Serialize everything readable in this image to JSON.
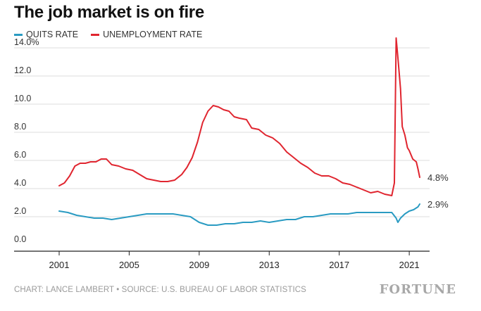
{
  "header": {
    "title": "The job market is on fire"
  },
  "footer": {
    "source": "CHART: LANCE LAMBERT • SOURCE: U.S. BUREAU OF LABOR STATISTICS",
    "brand": "FORTUNE"
  },
  "colors": {
    "quits": "#2a9bc2",
    "unemployment": "#e0252f",
    "grid": "#dedede",
    "axis": "#222222"
  },
  "chart_data": {
    "type": "line",
    "title": "The job market is on fire",
    "xlabel": "",
    "ylabel": "",
    "xlim": [
      2001.0,
      2021.8
    ],
    "ylim": [
      0,
      14
    ],
    "y_ticks": [
      "0.0",
      "2.0",
      "4.0",
      "6.0",
      "8.0",
      "10.0",
      "12.0",
      "14.0%"
    ],
    "y_tick_values": [
      0,
      2,
      4,
      6,
      8,
      10,
      12,
      14
    ],
    "x_ticks": [
      "2001",
      "2005",
      "2009",
      "2013",
      "2017",
      "2021"
    ],
    "x_tick_values": [
      2001,
      2005,
      2009,
      2013,
      2017,
      2021
    ],
    "grid": "horizontal",
    "legend_position": "top-left",
    "series": [
      {
        "name": "QUITS RATE",
        "end_label": "2.9%",
        "x": [
          2001.0,
          2001.5,
          2002.0,
          2002.5,
          2003.0,
          2003.5,
          2004.0,
          2004.5,
          2005.0,
          2005.5,
          2006.0,
          2006.5,
          2007.0,
          2007.5,
          2008.0,
          2008.5,
          2009.0,
          2009.5,
          2010.0,
          2010.5,
          2011.0,
          2011.5,
          2012.0,
          2012.5,
          2013.0,
          2013.5,
          2014.0,
          2014.5,
          2015.0,
          2015.5,
          2016.0,
          2016.5,
          2017.0,
          2017.5,
          2018.0,
          2018.5,
          2019.0,
          2019.5,
          2020.0,
          2020.25,
          2020.35,
          2020.5,
          2020.75,
          2021.0,
          2021.25,
          2021.5,
          2021.6
        ],
        "values": [
          2.4,
          2.3,
          2.1,
          2.0,
          1.9,
          1.9,
          1.8,
          1.9,
          2.0,
          2.1,
          2.2,
          2.2,
          2.2,
          2.2,
          2.1,
          2.0,
          1.6,
          1.4,
          1.4,
          1.5,
          1.5,
          1.6,
          1.6,
          1.7,
          1.6,
          1.7,
          1.8,
          1.8,
          2.0,
          2.0,
          2.1,
          2.2,
          2.2,
          2.2,
          2.3,
          2.3,
          2.3,
          2.3,
          2.3,
          1.9,
          1.6,
          1.9,
          2.2,
          2.4,
          2.5,
          2.7,
          2.9
        ]
      },
      {
        "name": "UNEMPLOYMENT RATE",
        "end_label": "4.8%",
        "x": [
          2001.0,
          2001.3,
          2001.6,
          2001.9,
          2002.2,
          2002.5,
          2002.8,
          2003.1,
          2003.4,
          2003.7,
          2004.0,
          2004.4,
          2004.8,
          2005.2,
          2005.6,
          2006.0,
          2006.4,
          2006.8,
          2007.2,
          2007.6,
          2008.0,
          2008.3,
          2008.6,
          2008.9,
          2009.2,
          2009.5,
          2009.8,
          2010.1,
          2010.4,
          2010.7,
          2011.0,
          2011.3,
          2011.7,
          2012.0,
          2012.4,
          2012.8,
          2013.2,
          2013.6,
          2014.0,
          2014.4,
          2014.8,
          2015.2,
          2015.6,
          2016.0,
          2016.4,
          2016.8,
          2017.2,
          2017.6,
          2018.0,
          2018.4,
          2018.8,
          2019.2,
          2019.6,
          2020.0,
          2020.15,
          2020.25,
          2020.35,
          2020.5,
          2020.6,
          2020.75,
          2020.9,
          2021.0,
          2021.2,
          2021.4,
          2021.5,
          2021.6
        ],
        "values": [
          4.2,
          4.4,
          4.9,
          5.6,
          5.8,
          5.8,
          5.9,
          5.9,
          6.1,
          6.1,
          5.7,
          5.6,
          5.4,
          5.3,
          5.0,
          4.7,
          4.6,
          4.5,
          4.5,
          4.6,
          5.0,
          5.5,
          6.2,
          7.3,
          8.7,
          9.5,
          9.9,
          9.8,
          9.6,
          9.5,
          9.1,
          9.0,
          8.9,
          8.3,
          8.2,
          7.8,
          7.6,
          7.2,
          6.6,
          6.2,
          5.8,
          5.5,
          5.1,
          4.9,
          4.9,
          4.7,
          4.4,
          4.3,
          4.1,
          3.9,
          3.7,
          3.8,
          3.6,
          3.5,
          4.4,
          14.7,
          13.3,
          11.1,
          8.4,
          7.8,
          6.9,
          6.7,
          6.1,
          5.9,
          5.4,
          4.8
        ]
      }
    ]
  }
}
